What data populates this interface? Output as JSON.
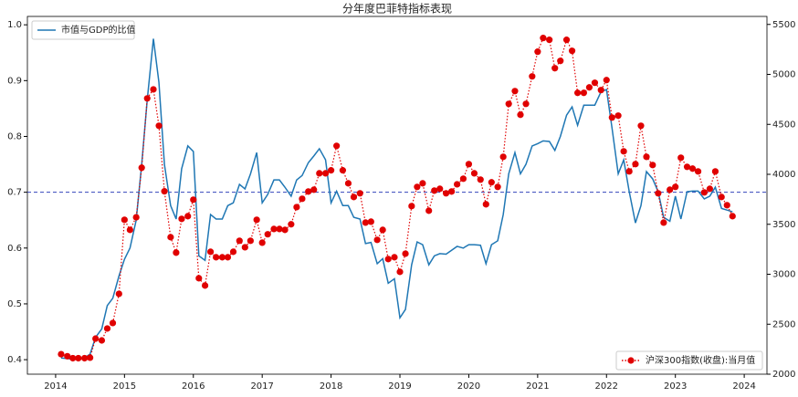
{
  "chart_data": {
    "type": "line",
    "title": "分年度巴菲特指标表现",
    "x": [
      2014.08,
      2014.17,
      2014.25,
      2014.33,
      2014.42,
      2014.5,
      2014.58,
      2014.67,
      2014.75,
      2014.83,
      2014.92,
      2015,
      2015.08,
      2015.17,
      2015.25,
      2015.33,
      2015.42,
      2015.5,
      2015.58,
      2015.67,
      2015.75,
      2015.83,
      2015.92,
      2016,
      2016.08,
      2016.17,
      2016.25,
      2016.33,
      2016.42,
      2016.5,
      2016.58,
      2016.67,
      2016.75,
      2016.83,
      2016.92,
      2017,
      2017.08,
      2017.17,
      2017.25,
      2017.33,
      2017.42,
      2017.5,
      2017.58,
      2017.67,
      2017.75,
      2017.83,
      2017.92,
      2018,
      2018.08,
      2018.17,
      2018.25,
      2018.33,
      2018.42,
      2018.5,
      2018.58,
      2018.67,
      2018.75,
      2018.83,
      2018.92,
      2019,
      2019.08,
      2019.17,
      2019.25,
      2019.33,
      2019.42,
      2019.5,
      2019.58,
      2019.67,
      2019.75,
      2019.83,
      2019.92,
      2020,
      2020.08,
      2020.17,
      2020.25,
      2020.33,
      2020.42,
      2020.5,
      2020.58,
      2020.67,
      2020.75,
      2020.83,
      2020.92,
      2021,
      2021.08,
      2021.17,
      2021.25,
      2021.33,
      2021.42,
      2021.5,
      2021.58,
      2021.67,
      2021.75,
      2021.83,
      2021.92,
      2022,
      2022.08,
      2022.17,
      2022.25,
      2022.33,
      2022.42,
      2022.5,
      2022.58,
      2022.67,
      2022.75,
      2022.83,
      2022.92,
      2023,
      2023.08,
      2023.17,
      2023.25,
      2023.33,
      2023.42,
      2023.5,
      2023.58,
      2023.67,
      2023.75,
      2023.83
    ],
    "series": [
      {
        "name": "市值与GDP的比值",
        "color": "#1f77b4",
        "style": "solid",
        "axis": "y",
        "values": [
          0.403,
          0.402,
          0.401,
          0.402,
          0.403,
          0.41,
          0.44,
          0.455,
          0.497,
          0.51,
          0.55,
          0.58,
          0.6,
          0.65,
          0.75,
          0.865,
          0.975,
          0.897,
          0.75,
          0.676,
          0.652,
          0.742,
          0.783,
          0.773,
          0.586,
          0.578,
          0.66,
          0.652,
          0.652,
          0.676,
          0.681,
          0.714,
          0.706,
          0.733,
          0.771,
          0.681,
          0.696,
          0.722,
          0.722,
          0.709,
          0.693,
          0.722,
          0.73,
          0.753,
          0.765,
          0.778,
          0.758,
          0.681,
          0.702,
          0.676,
          0.676,
          0.655,
          0.652,
          0.608,
          0.61,
          0.572,
          0.581,
          0.537,
          0.545,
          0.475,
          0.49,
          0.57,
          0.611,
          0.606,
          0.57,
          0.586,
          0.59,
          0.589,
          0.596,
          0.603,
          0.6,
          0.606,
          0.606,
          0.605,
          0.572,
          0.606,
          0.613,
          0.66,
          0.733,
          0.771,
          0.733,
          0.75,
          0.783,
          0.787,
          0.792,
          0.791,
          0.775,
          0.8,
          0.838,
          0.853,
          0.82,
          0.856,
          0.856,
          0.856,
          0.88,
          0.884,
          0.815,
          0.733,
          0.758,
          0.701,
          0.645,
          0.676,
          0.737,
          0.724,
          0.701,
          0.655,
          0.648,
          0.693,
          0.652,
          0.701,
          0.702,
          0.702,
          0.688,
          0.693,
          0.709,
          0.671,
          0.668,
          0.665
        ]
      },
      {
        "name": "沪深300指数(收盘):当月值",
        "color": "#e00000",
        "style": "dotted",
        "marker": "circle",
        "axis": "y2",
        "values": [
          2200,
          2180,
          2160,
          2160,
          2160,
          2165,
          2356,
          2338,
          2457,
          2512,
          2804,
          3545,
          3444,
          3570,
          4066,
          4760,
          4850,
          4486,
          3830,
          3371,
          3216,
          3554,
          3581,
          3746,
          2960,
          2887,
          3225,
          3170,
          3170,
          3170,
          3225,
          3335,
          3270,
          3335,
          3545,
          3316,
          3400,
          3453,
          3453,
          3444,
          3500,
          3672,
          3755,
          3828,
          3846,
          4010,
          4010,
          4040,
          4285,
          4040,
          3910,
          3773,
          3810,
          3517,
          3526,
          3344,
          3444,
          3152,
          3170,
          3024,
          3206,
          3682,
          3874,
          3910,
          3636,
          3837,
          3855,
          3810,
          3828,
          3900,
          3956,
          4102,
          4010,
          3947,
          3700,
          3920,
          3874,
          4175,
          4705,
          4833,
          4596,
          4705,
          4980,
          5227,
          5364,
          5346,
          5062,
          5135,
          5346,
          5236,
          4815,
          4815,
          4870,
          4916,
          4843,
          4943,
          4568,
          4587,
          4230,
          4029,
          4102,
          4486,
          4175,
          4093,
          3810,
          3517,
          3846,
          3874,
          4166,
          4075,
          4057,
          4029,
          3819,
          3855,
          4029,
          3773,
          3691,
          3581
        ]
      }
    ],
    "hline": {
      "value": 0.7,
      "color": "#3344bb",
      "axis": "y"
    },
    "xlim": [
      2013.59,
      2024.33
    ],
    "xticks": [
      2014,
      2015,
      2016,
      2017,
      2018,
      2019,
      2020,
      2021,
      2022,
      2023,
      2024
    ],
    "ylim": [
      0.374,
      1.015
    ],
    "yticks": [
      0.4,
      0.5,
      0.6,
      0.7,
      0.8,
      0.9,
      {
        "value": 1,
        "label": "1.0"
      }
    ],
    "y2lim": [
      2000,
      5580
    ],
    "y2ticks": [
      2000,
      2500,
      3000,
      3500,
      4000,
      4500,
      5000,
      5500
    ],
    "legend": [
      "upper left",
      "lower right"
    ]
  }
}
